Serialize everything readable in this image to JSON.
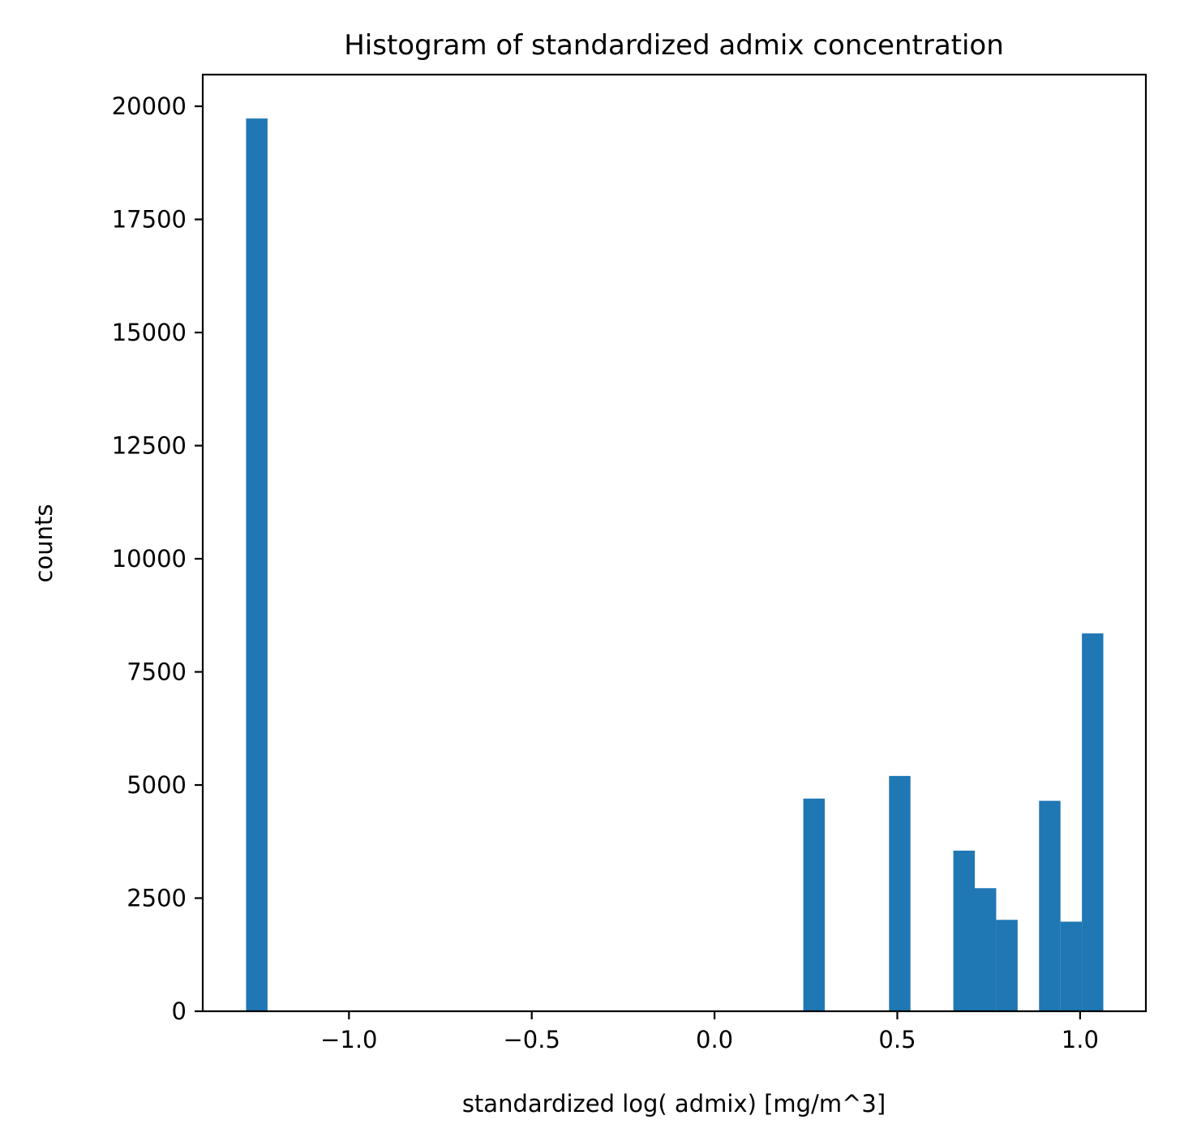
{
  "chart_data": {
    "type": "bar",
    "title": "Histogram of standardized admix concentration",
    "xlabel": "standardized log( admix) [mg/m^3]",
    "ylabel": "counts",
    "xlim": [
      -1.4,
      1.18
    ],
    "ylim": [
      0,
      20700
    ],
    "bin_width": 0.0586,
    "xticks": [
      {
        "value": -1.0,
        "label": "−1.0"
      },
      {
        "value": -0.5,
        "label": "−0.5"
      },
      {
        "value": 0.0,
        "label": "0.0"
      },
      {
        "value": 0.5,
        "label": "0.5"
      },
      {
        "value": 1.0,
        "label": "1.0"
      }
    ],
    "yticks": [
      {
        "value": 0,
        "label": "0"
      },
      {
        "value": 2500,
        "label": "2500"
      },
      {
        "value": 5000,
        "label": "5000"
      },
      {
        "value": 7500,
        "label": "7500"
      },
      {
        "value": 10000,
        "label": "10000"
      },
      {
        "value": 12500,
        "label": "12500"
      },
      {
        "value": 15000,
        "label": "15000"
      },
      {
        "value": 17500,
        "label": "17500"
      },
      {
        "value": 20000,
        "label": "20000"
      }
    ],
    "bins": [
      {
        "x0": -1.2814,
        "count": 19730
      },
      {
        "x0": 0.2429,
        "count": 4700
      },
      {
        "x0": 0.4774,
        "count": 5200
      },
      {
        "x0": 0.6533,
        "count": 3550
      },
      {
        "x0": 0.7119,
        "count": 2720
      },
      {
        "x0": 0.7705,
        "count": 2020
      },
      {
        "x0": 0.8878,
        "count": 4650
      },
      {
        "x0": 0.9464,
        "count": 1980
      },
      {
        "x0": 1.005,
        "count": 8350
      }
    ],
    "bar_color": "#1f77b4"
  }
}
